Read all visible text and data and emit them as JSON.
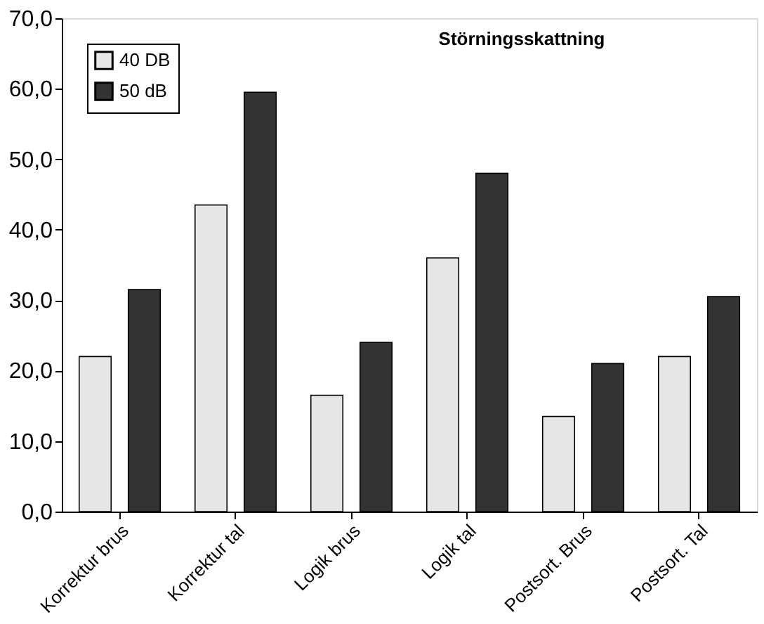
{
  "chart_data": {
    "type": "bar",
    "title": "Störningsskattning",
    "categories": [
      "Korrektur brus",
      "Korrektur tal",
      "Logik brus",
      "Logik tal",
      "Postsort. Brus",
      "Postsort. Tal"
    ],
    "series": [
      {
        "name": "40 DB",
        "color": "#e6e6e6",
        "values": [
          22,
          43.5,
          16.5,
          36,
          13.5,
          22
        ]
      },
      {
        "name": "50 dB",
        "color": "#333333",
        "values": [
          31.5,
          59.5,
          24,
          48,
          21,
          30.5
        ]
      }
    ],
    "ylim": [
      0,
      70
    ],
    "yticks": [
      {
        "value": 0,
        "label": "0,0"
      },
      {
        "value": 10,
        "label": "10,0"
      },
      {
        "value": 20,
        "label": "20,0"
      },
      {
        "value": 30,
        "label": "30,0"
      },
      {
        "value": 40,
        "label": "40,0"
      },
      {
        "value": 50,
        "label": "50,0"
      },
      {
        "value": 60,
        "label": "60,0"
      },
      {
        "value": 70,
        "label": "70,0"
      }
    ],
    "grid": false,
    "legend": "top left"
  }
}
